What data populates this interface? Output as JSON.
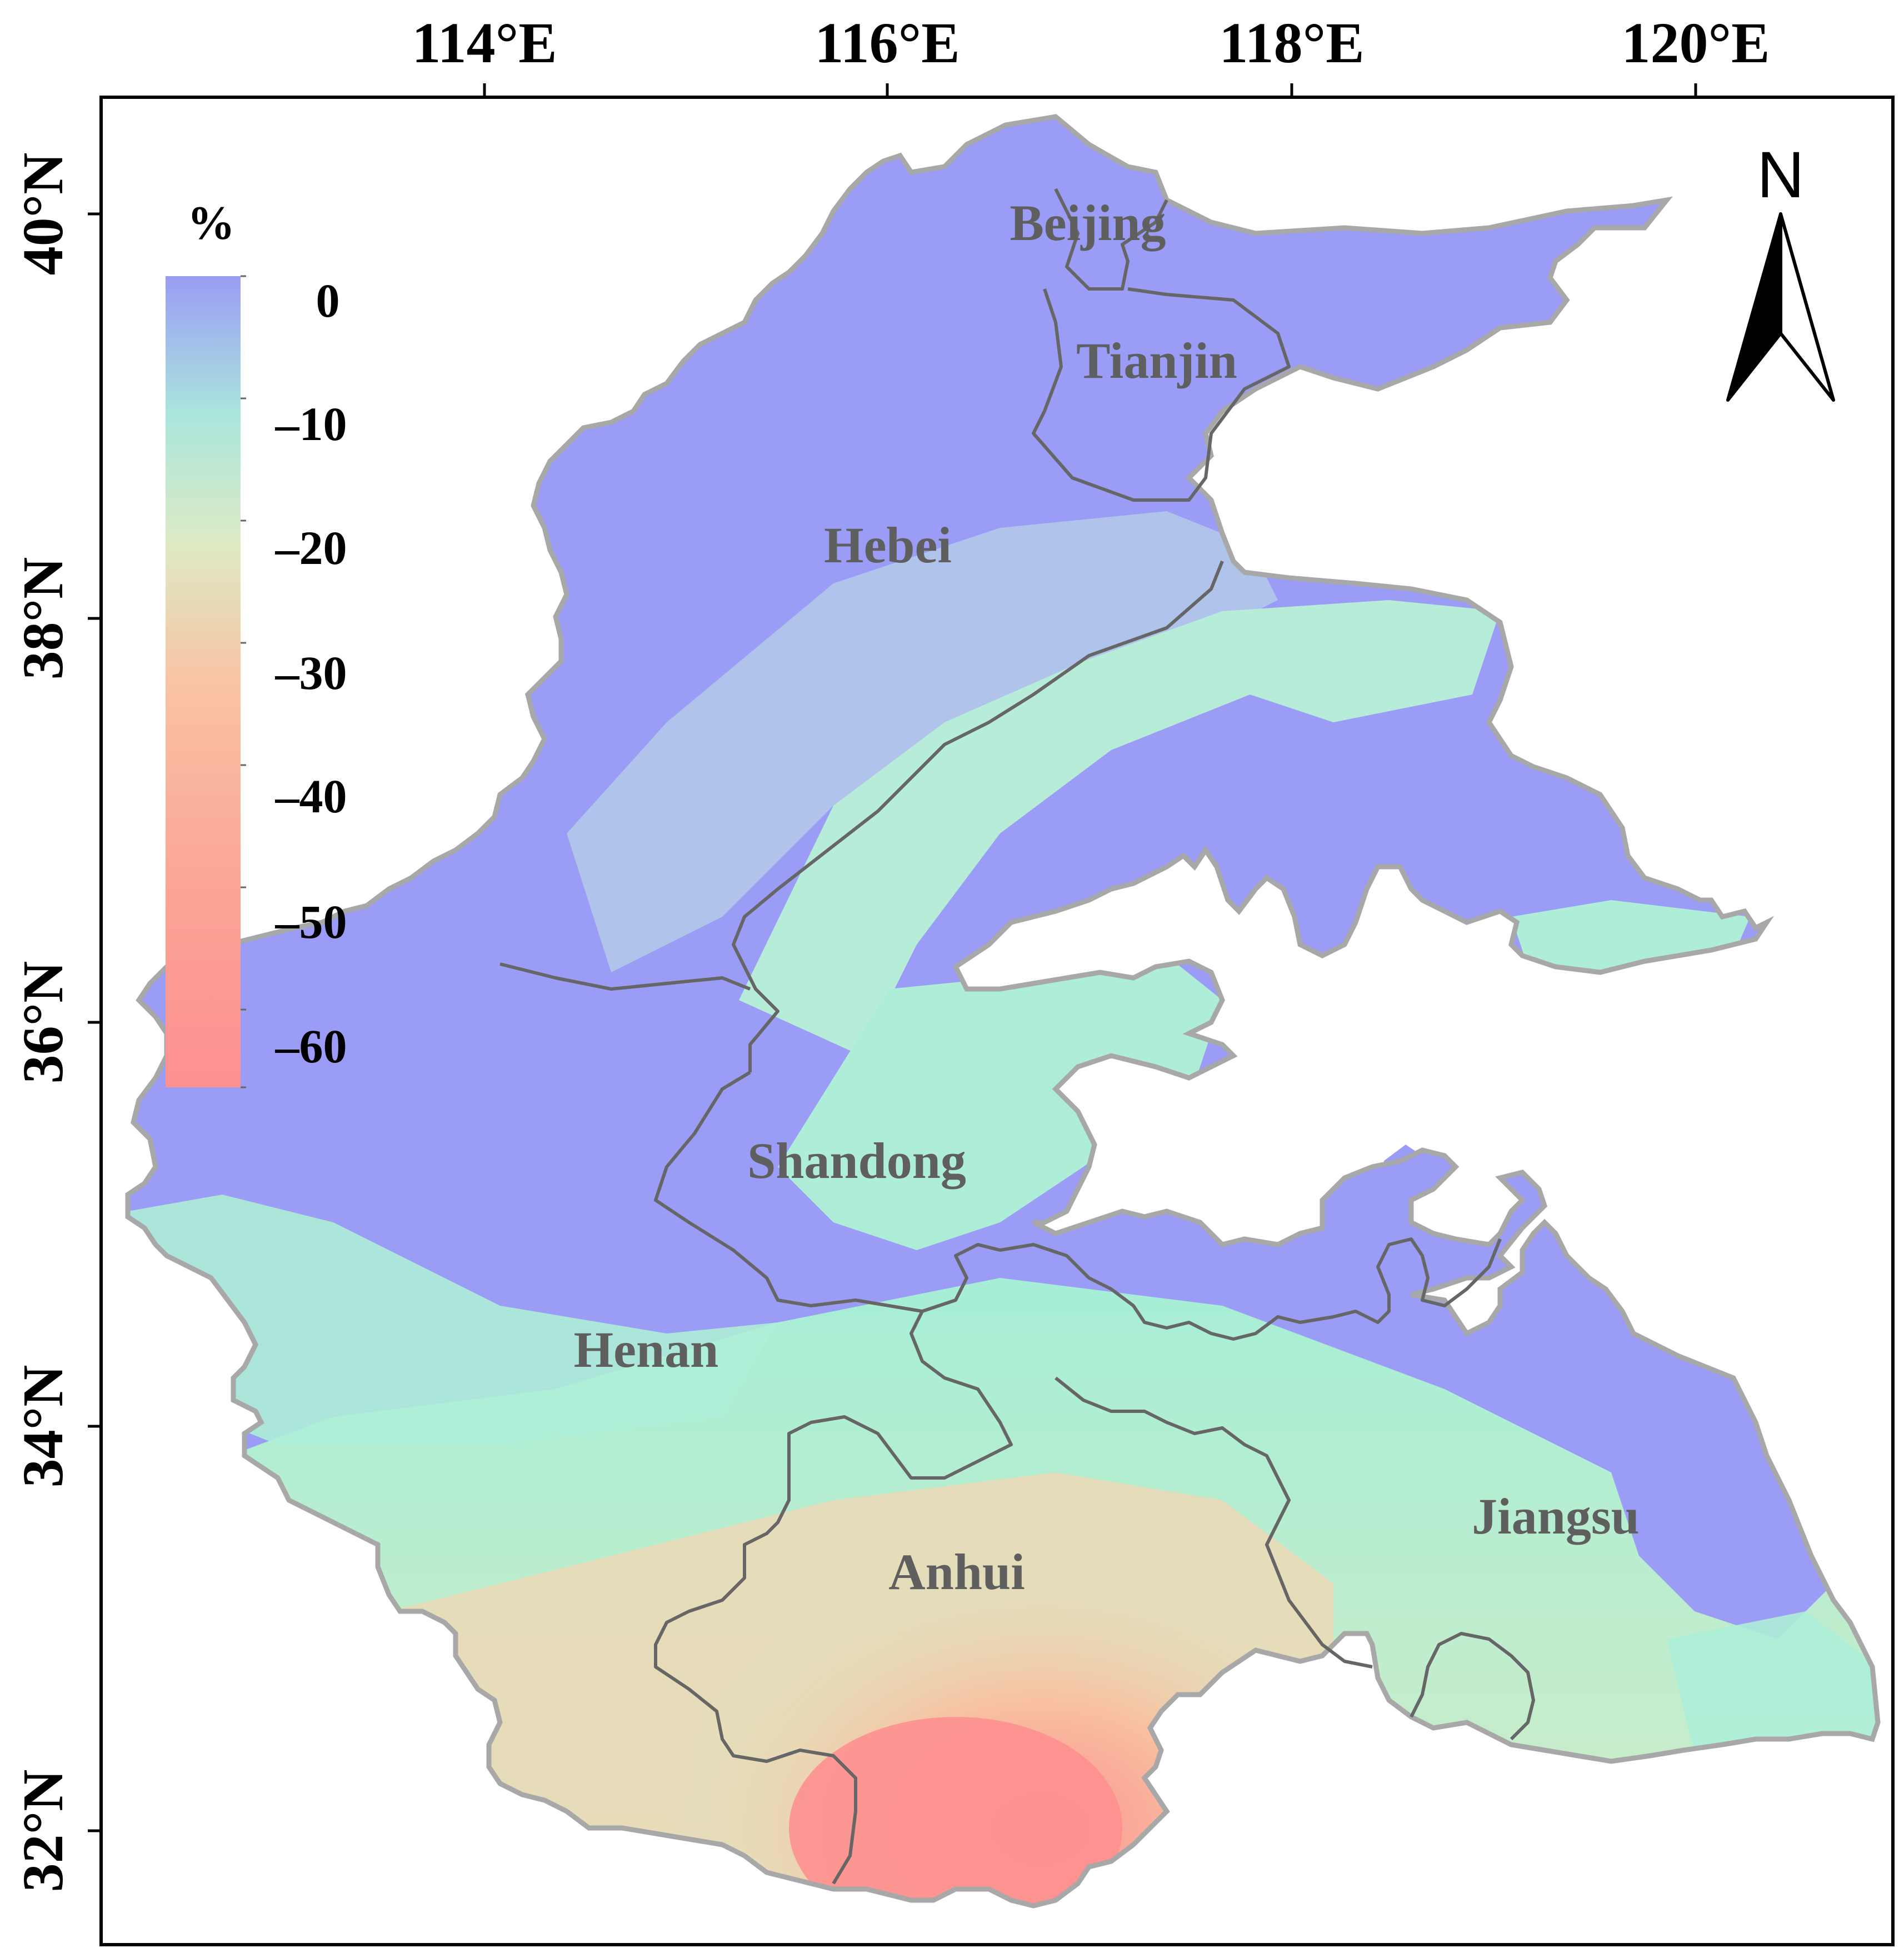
{
  "map": {
    "x_ticks": [
      "114°E",
      "116°E",
      "118°E",
      "120°E"
    ],
    "y_ticks": [
      "40°N",
      "38°N",
      "36°N",
      "34°N",
      "32°N"
    ],
    "provinces": [
      {
        "key": "beijing",
        "label": "Beijing"
      },
      {
        "key": "tianjin",
        "label": "Tianjin"
      },
      {
        "key": "hebei",
        "label": "Hebei"
      },
      {
        "key": "shandong",
        "label": "Shandong"
      },
      {
        "key": "henan",
        "label": "Henan"
      },
      {
        "key": "anhui",
        "label": "Anhui"
      },
      {
        "key": "jiangsu",
        "label": "Jiangsu"
      }
    ],
    "north_label": "N",
    "legend": {
      "unit": "%",
      "ticks": [
        "0",
        "–10",
        "–20",
        "–30",
        "–40",
        "–50",
        "–60"
      ],
      "colors": [
        "#9a9cf5",
        "#b3d3e8",
        "#a8f0d4",
        "#ddeac4",
        "#f9c3a4",
        "#fba596",
        "#fd9090"
      ]
    },
    "colors": {
      "high": "#9a9cf5",
      "mid": "#aef0d6",
      "low": "#fd9090",
      "boundary_outer": "#a8a8a8",
      "boundary_inner": "#666666"
    }
  }
}
